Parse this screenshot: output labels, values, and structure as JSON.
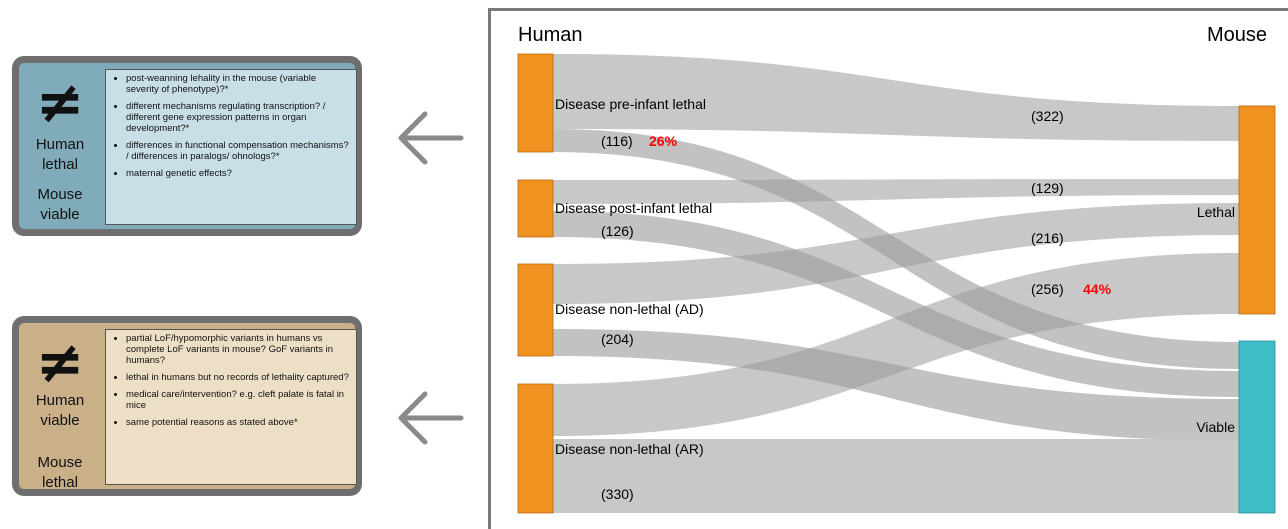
{
  "panels": {
    "top": {
      "symbol": "≠",
      "human_label": "Human lethal",
      "mouse_label": "Mouse viable",
      "items": [
        "post-weanning lehality in the mouse (variable severity of phenotype)?*",
        "different mechanisms regulating transcription? / different gene expression patterns in organ development?*",
        "differences in functional compensation mechanisms? / differences in paralogs/ ohnologs?*",
        "maternal genetic effects?"
      ]
    },
    "bottom": {
      "symbol": "≠",
      "human_label": "Human viable",
      "mouse_label": "Mouse lethal",
      "items": [
        "partial LoF/hypomorphic variants in humans vs complete LoF variants in mouse? GoF variants in humans?",
        "lethal in humans but no records of lethality captured?",
        "medical care/intervention? e.g. cleft palate is fatal in mice",
        "same potential reasons as stated above*"
      ]
    }
  },
  "sankey": {
    "left_title": "Human",
    "right_title": "Mouse",
    "colors": {
      "human_node": "#f0921f",
      "lethal_node": "#f0921f",
      "viable_node": "#3dbdc6",
      "flow": "#c8c8c8",
      "highlight_text": "#ff0000"
    },
    "nodes_left": [
      {
        "label": "Disease pre-infant lethal"
      },
      {
        "label": "Disease post-infant lethal"
      },
      {
        "label": "Disease non-lethal (AD)"
      },
      {
        "label": "Disease non-lethal (AR)"
      }
    ],
    "nodes_right": [
      {
        "label": "Lethal"
      },
      {
        "label": "Viable"
      }
    ],
    "flow_labels": [
      {
        "text": "(322)"
      },
      {
        "text": "(116)",
        "pct": "26%"
      },
      {
        "text": "(129)"
      },
      {
        "text": "(126)"
      },
      {
        "text": "(216)"
      },
      {
        "text": "(256)",
        "pct": "44%"
      },
      {
        "text": "(204)"
      },
      {
        "text": "(330)"
      }
    ]
  }
}
